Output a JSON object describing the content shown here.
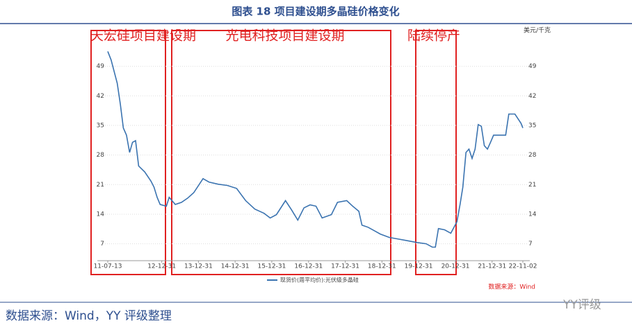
{
  "chart_data": {
    "type": "line",
    "title": "图表 18 项目建设期多晶硅价格变化",
    "y_unit": "美元/千克",
    "annotations": [
      "天宏硅项目建设期",
      "光电科技项目建设期",
      "陆续停产"
    ],
    "source": "数据来源：Wind",
    "footer": "数据来源：Wind，YY 评级整理",
    "watermark": "YY评级",
    "x": [
      "11-07-13",
      "11-08-15",
      "11-10-15",
      "11-11-15",
      "11-12-15",
      "12-01-15",
      "12-02-15",
      "12-03-15",
      "12-04-15",
      "12-05-15",
      "12-07-15",
      "12-09-15",
      "12-10-15",
      "12-11-15",
      "12-12-15",
      "13-02-15",
      "13-03-15",
      "13-05-15",
      "13-07-15",
      "13-09-15",
      "13-11-15",
      "14-02-15",
      "14-04-15",
      "14-07-15",
      "14-10-15",
      "15-01-15",
      "15-04-15",
      "15-07-15",
      "15-10-15",
      "15-12-15",
      "16-02-15",
      "16-05-15",
      "16-07-15",
      "16-09-15",
      "16-11-15",
      "17-01-15",
      "17-03-15",
      "17-05-15",
      "17-08-15",
      "17-10-15",
      "18-01-15",
      "18-03-15",
      "18-05-15",
      "18-06-15",
      "18-08-15",
      "18-10-15",
      "18-12-15",
      "19-03-15",
      "19-06-15",
      "19-09-15",
      "19-12-15",
      "20-03-15",
      "20-05-15",
      "20-06-15",
      "20-07-15",
      "20-09-15",
      "20-11-15",
      "21-01-15",
      "21-02-15",
      "21-03-15",
      "21-04-15",
      "21-05-15",
      "21-06-15",
      "21-07-15",
      "21-08-15",
      "21-09-15",
      "21-10-15",
      "21-11-15",
      "21-12-15",
      "22-01-15",
      "22-03-15",
      "22-05-15",
      "22-06-15",
      "22-08-15",
      "22-10-15",
      "22-11-02"
    ],
    "series": [
      {
        "name": "现货价(周平均价):光伏级多晶硅",
        "color": "#3a73b0",
        "values": [
          52.5,
          50.5,
          45,
          40,
          34.4,
          32.7,
          28.6,
          31,
          31.4,
          25.4,
          24,
          21.8,
          20.4,
          18,
          16.3,
          15.9,
          18,
          16.3,
          16.8,
          17.8,
          19.1,
          22.4,
          21.6,
          21.1,
          20.8,
          20.1,
          17.2,
          15.2,
          14.2,
          13.1,
          13.9,
          17.2,
          15,
          12.6,
          15.5,
          16.2,
          15.9,
          13.1,
          13.9,
          16.8,
          17.2,
          15.9,
          14.7,
          11.4,
          10.9,
          10.1,
          9.3,
          8.5,
          8.1,
          7.7,
          7.3,
          7,
          6.2,
          6.2,
          10.6,
          10.3,
          9.5,
          12.2,
          16.3,
          20.4,
          28.6,
          29.4,
          27.2,
          29.4,
          35.2,
          34.8,
          30.2,
          29.4,
          31,
          32.7,
          32.7,
          32.7,
          37.7,
          37.7,
          35.5,
          34.4
        ]
      }
    ],
    "xlim": [
      "11-07-13",
      "22-11-02"
    ],
    "xticks": [
      "11-07-13",
      "12-12-31",
      "13-12-31",
      "14-12-31",
      "15-12-31",
      "16-12-31",
      "17-12-31",
      "18-12-31",
      "19-12-31",
      "20-12-31",
      "21-12-31",
      "22-11-02"
    ],
    "ylim": [
      3,
      55
    ],
    "yticks": [
      7,
      14,
      21,
      28,
      35,
      42,
      49
    ],
    "grid": true
  }
}
